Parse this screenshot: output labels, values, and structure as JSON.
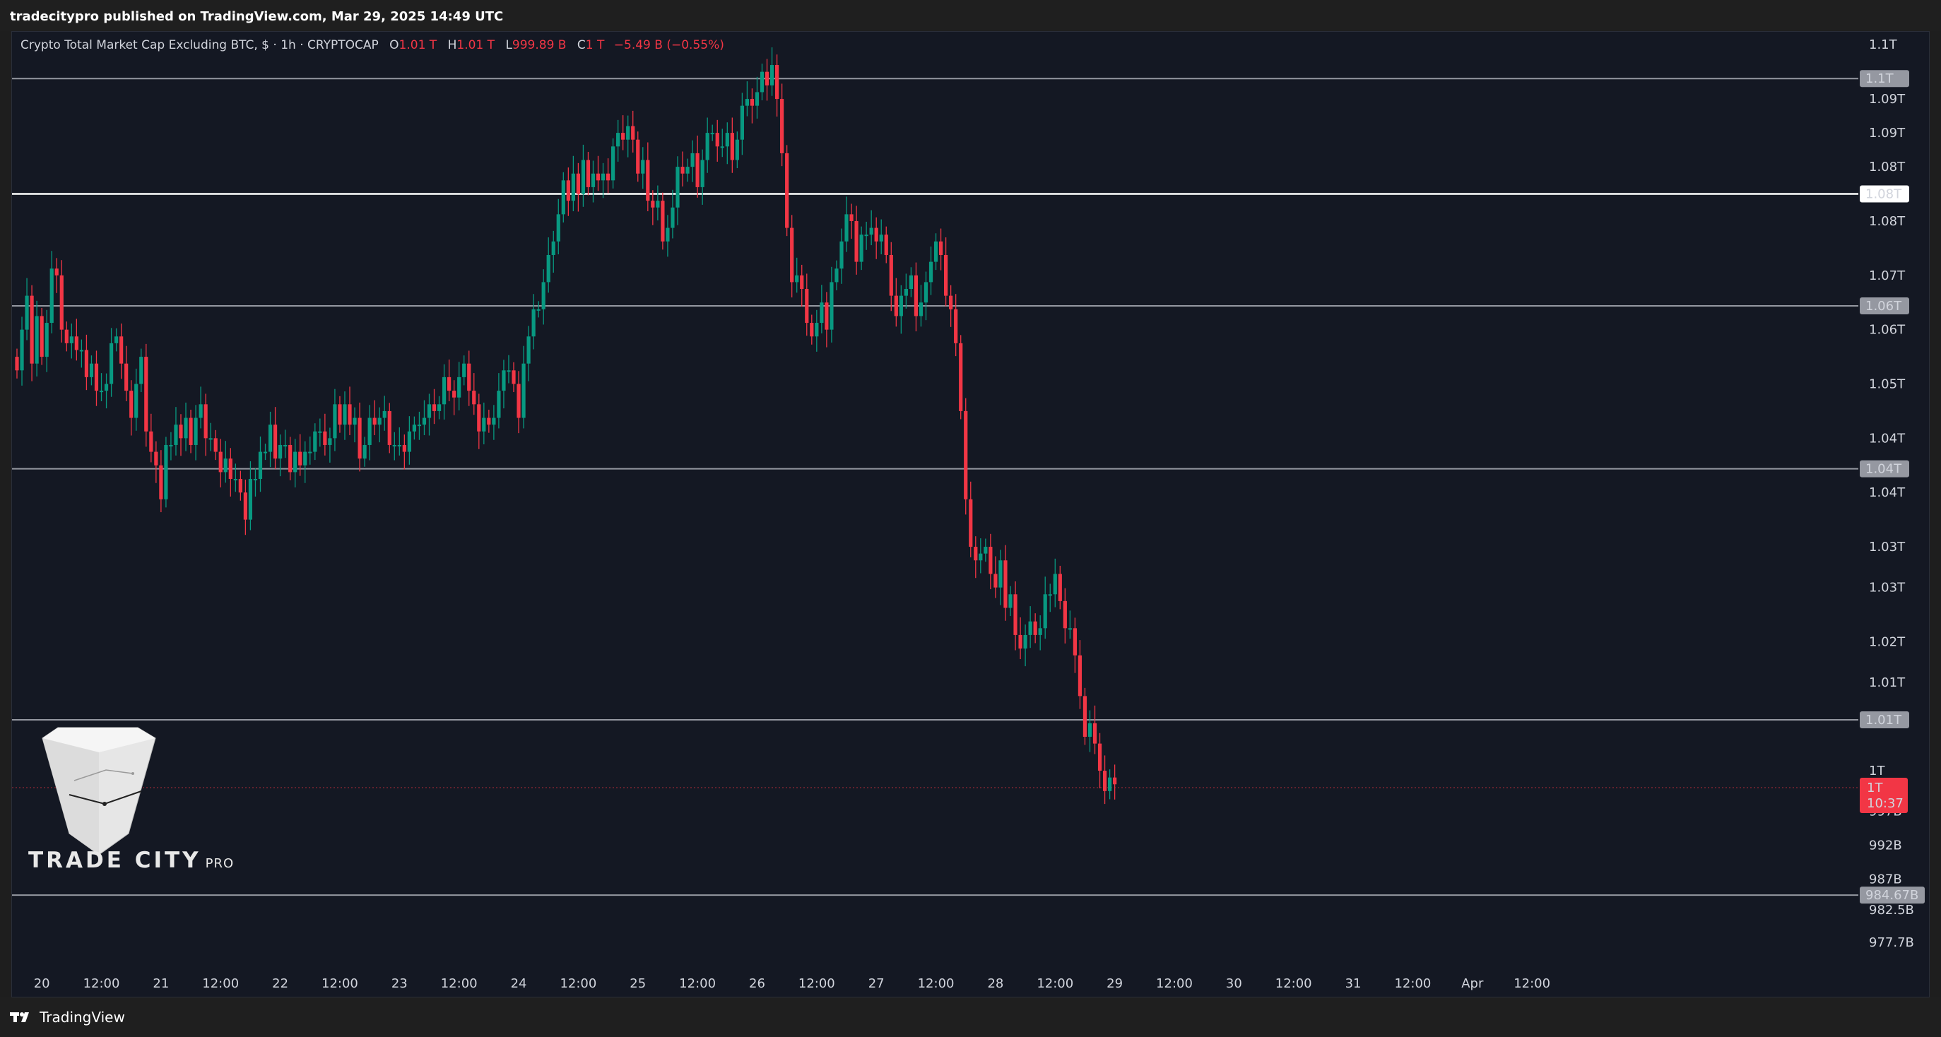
{
  "header": {
    "published_text": "tradecitypro published on TradingView.com, Mar 29, 2025 14:49 UTC"
  },
  "legend": {
    "symbol": "Crypto Total Market Cap Excluding BTC, $ · 1h · CRYPTOCAP",
    "o_label": "O",
    "o_value": "1.01 T",
    "h_label": "H",
    "h_value": "1.01 T",
    "l_label": "L",
    "l_value": "999.89 B",
    "c_label": "C",
    "c_value": "1 T",
    "change": "−5.49 B (−0.55%)"
  },
  "footer": {
    "brand": "TradingView"
  },
  "watermark": {
    "name": "TRADE CITY",
    "suffix": "PRO"
  },
  "colors": {
    "up": "#089981",
    "down": "#f23645",
    "background": "#141823",
    "text": "#d1d4dc"
  },
  "chart_data": {
    "type": "candlestick",
    "title": "Crypto Total Market Cap Excluding BTC, $ · 1h · CRYPTOCAP",
    "ylim": [
      975,
      1112
    ],
    "y_unit": "B",
    "y_ticks": [
      {
        "value": 1110,
        "label": "1.1T"
      },
      {
        "value": 1105,
        "label": "1.1T"
      },
      {
        "value": 1102,
        "label": "1.09T"
      },
      {
        "value": 1097,
        "label": "1.09T"
      },
      {
        "value": 1092,
        "label": "1.08T"
      },
      {
        "value": 1084,
        "label": "1.08T"
      },
      {
        "value": 1076,
        "label": "1.07T"
      },
      {
        "value": 1068,
        "label": "1.06T"
      },
      {
        "value": 1060,
        "label": "1.05T"
      },
      {
        "value": 1052,
        "label": "1.04T"
      },
      {
        "value": 1044,
        "label": "1.04T"
      },
      {
        "value": 1036,
        "label": "1.03T"
      },
      {
        "value": 1030,
        "label": "1.03T"
      },
      {
        "value": 1022,
        "label": "1.02T"
      },
      {
        "value": 1016,
        "label": "1.01T"
      },
      {
        "value": 1003,
        "label": "1T"
      },
      {
        "value": 997,
        "label": "997B"
      },
      {
        "value": 992,
        "label": "992B"
      },
      {
        "value": 987,
        "label": "987B"
      },
      {
        "value": 982.5,
        "label": "982.5B"
      },
      {
        "value": 977.7,
        "label": "977.7B"
      }
    ],
    "x_ticks": [
      "20",
      "12:00",
      "21",
      "12:00",
      "22",
      "12:00",
      "23",
      "12:00",
      "24",
      "12:00",
      "25",
      "12:00",
      "26",
      "12:00",
      "27",
      "12:00",
      "28",
      "12:00",
      "29",
      "12:00",
      "30",
      "12:00",
      "31",
      "12:00",
      "Apr",
      "12:00"
    ],
    "levels": [
      {
        "value": 1105,
        "label": "1.1T",
        "style": "grey"
      },
      {
        "value": 1088,
        "label": "1.08T",
        "style": "white"
      },
      {
        "value": 1071.5,
        "label": "1.06T",
        "style": "grey"
      },
      {
        "value": 1047.5,
        "label": "1.04T",
        "style": "grey"
      },
      {
        "value": 1010.5,
        "label": "1.01T",
        "style": "grey"
      },
      {
        "value": 984.67,
        "label": "984.67B",
        "style": "grey"
      }
    ],
    "current_price": {
      "value": 1000.5,
      "label": "1T",
      "countdown": "10:37"
    },
    "candles_start": "Mar 19 19:00",
    "interval": "1h",
    "closes": [
      1062,
      1068,
      1073,
      1063,
      1070,
      1064,
      1069,
      1077,
      1076,
      1068,
      1066,
      1067,
      1065,
      1065,
      1061,
      1063,
      1059,
      1059,
      1060,
      1066,
      1067,
      1063,
      1059,
      1055,
      1060,
      1064,
      1053,
      1050,
      1048,
      1043,
      1051,
      1051,
      1054,
      1052,
      1055,
      1051,
      1055,
      1057,
      1052,
      1052,
      1050,
      1047,
      1049,
      1046,
      1046,
      1044,
      1040,
      1046,
      1046,
      1050,
      1050,
      1054,
      1049,
      1051,
      1051,
      1047,
      1050,
      1048,
      1050,
      1050,
      1053,
      1053,
      1051,
      1052,
      1057,
      1054,
      1057,
      1054,
      1055,
      1049,
      1051,
      1055,
      1054,
      1055,
      1056,
      1051,
      1051,
      1051,
      1050,
      1053,
      1054,
      1054,
      1055,
      1057,
      1056,
      1057,
      1061,
      1059,
      1058,
      1061,
      1063,
      1059,
      1057,
      1053,
      1055,
      1054,
      1055,
      1059,
      1062,
      1062,
      1060,
      1055,
      1063,
      1067,
      1071,
      1071,
      1075,
      1079,
      1081,
      1085,
      1090,
      1087,
      1091,
      1088,
      1093,
      1089,
      1091,
      1090,
      1091,
      1090,
      1095,
      1097,
      1096,
      1098,
      1096,
      1091,
      1093,
      1087,
      1086,
      1087,
      1081,
      1083,
      1086,
      1092,
      1091,
      1092,
      1094,
      1089,
      1093,
      1097,
      1097,
      1095,
      1095,
      1097,
      1093,
      1096,
      1101,
      1102,
      1101,
      1103,
      1106,
      1104,
      1107,
      1102,
      1094,
      1083,
      1075,
      1076,
      1074,
      1069,
      1067,
      1069,
      1072,
      1068,
      1075,
      1077,
      1081,
      1085,
      1084,
      1078,
      1082,
      1082,
      1083,
      1081,
      1082,
      1079,
      1073,
      1070,
      1073,
      1074,
      1076,
      1070,
      1072,
      1075,
      1078,
      1081,
      1079,
      1073,
      1071,
      1066,
      1056,
      1043,
      1036,
      1034,
      1035,
      1036,
      1032,
      1030,
      1034,
      1027,
      1029,
      1023,
      1021,
      1023,
      1025,
      1023,
      1024,
      1029,
      1029,
      1032,
      1028,
      1024,
      1024,
      1020,
      1014,
      1008,
      1010,
      1007,
      1003,
      1000,
      1002,
      1001
    ]
  }
}
